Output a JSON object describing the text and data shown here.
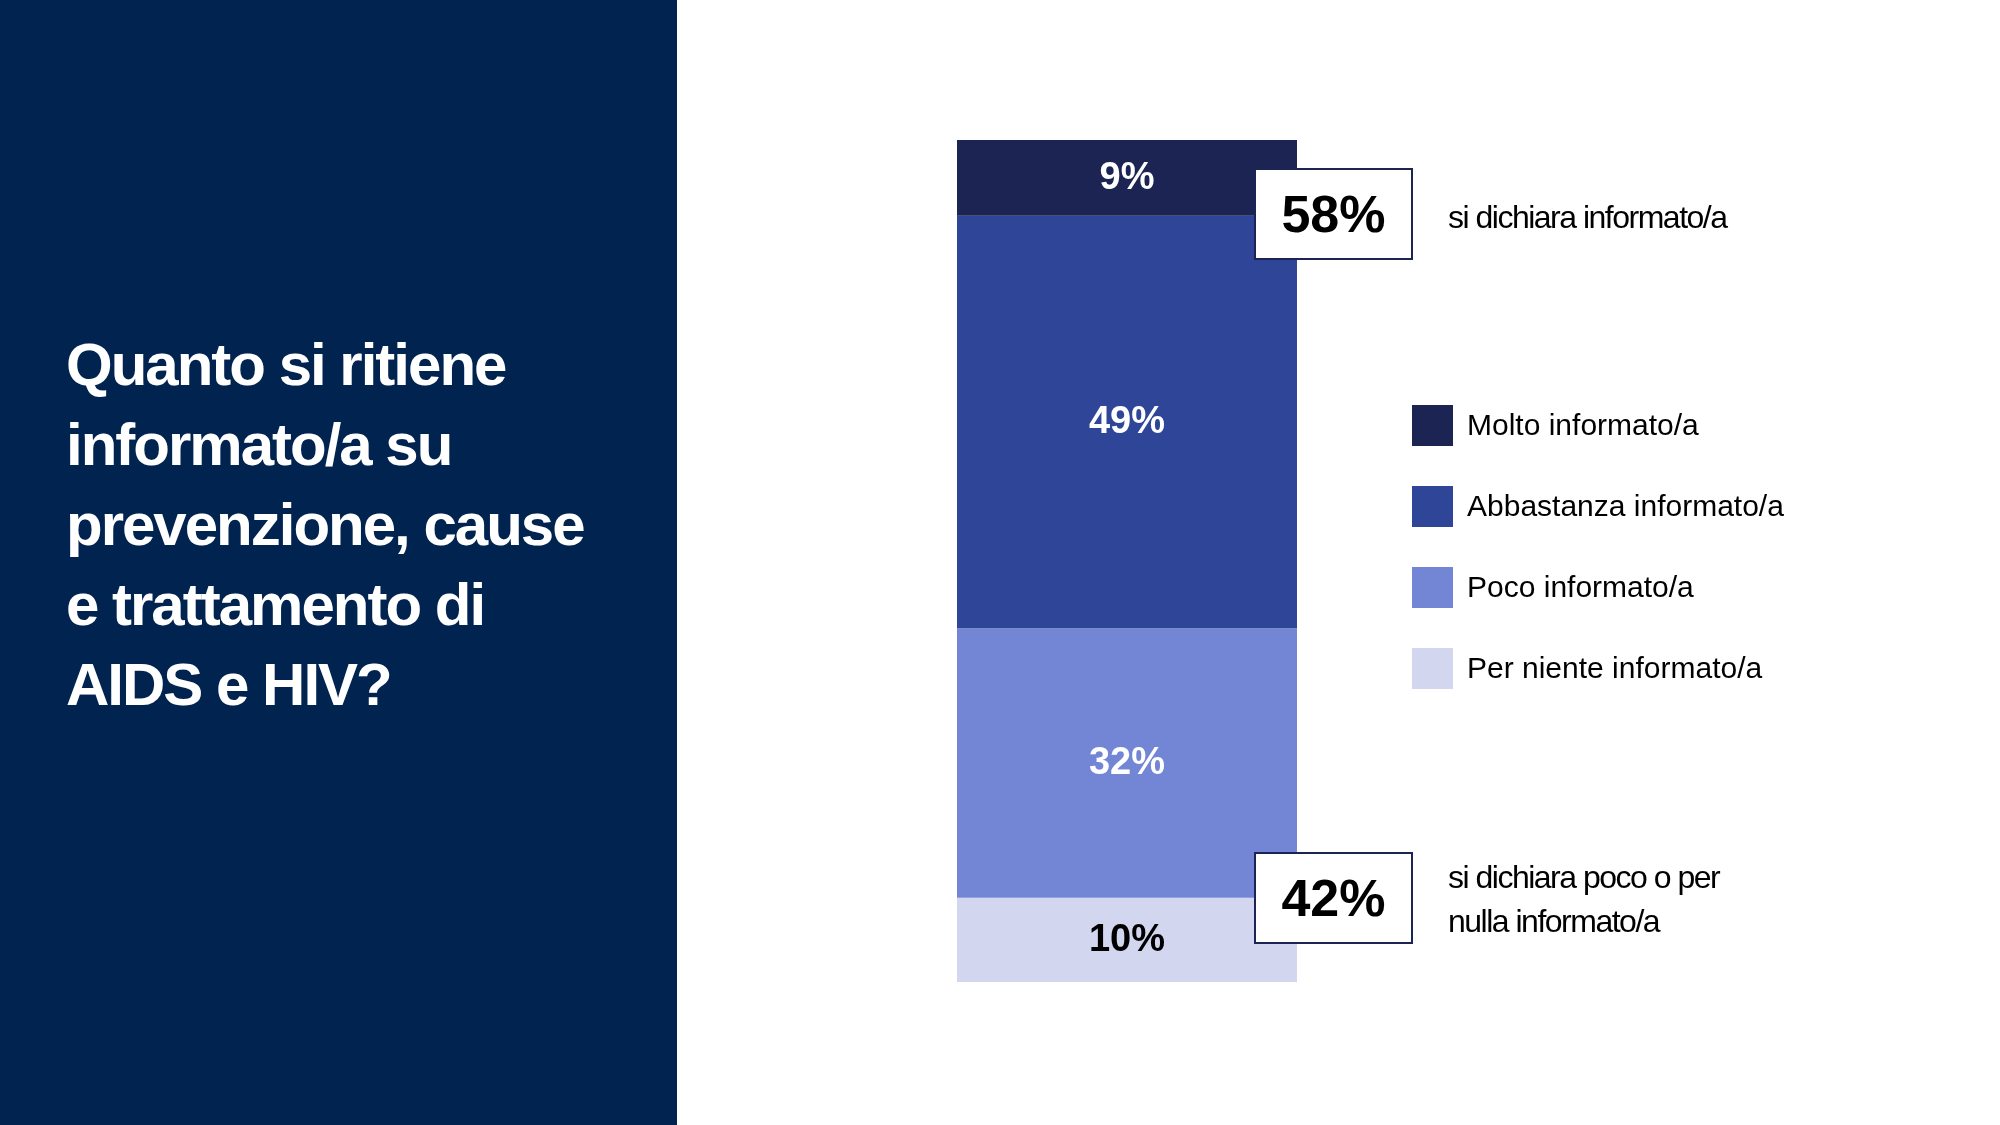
{
  "chart_data": {
    "type": "bar",
    "stacked": true,
    "title": "Quanto si ritiene informato/a su prevenzione, cause e trattamento di AIDS e HIV?",
    "categories": [
      null
    ],
    "series": [
      {
        "name": "Per niente informato/a",
        "color": "#d2d6ef",
        "values": [
          10
        ],
        "value_labels": [
          "10%"
        ]
      },
      {
        "name": "Poco informato/a",
        "color": "#7286d5",
        "values": [
          32
        ],
        "value_labels": [
          "32%"
        ]
      },
      {
        "name": "Abbastanza informato/a",
        "color": "#2e4598",
        "values": [
          49
        ],
        "value_labels": [
          "49%"
        ]
      },
      {
        "name": "Molto informato/a",
        "color": "#1b2452",
        "values": [
          9
        ],
        "value_labels": [
          "9%"
        ]
      }
    ],
    "legend": "right",
    "annotations": [
      "58%",
      "si dichiara informato/a",
      "42%",
      "si dichiara poco o per nulla informato/a"
    ]
  }
}
